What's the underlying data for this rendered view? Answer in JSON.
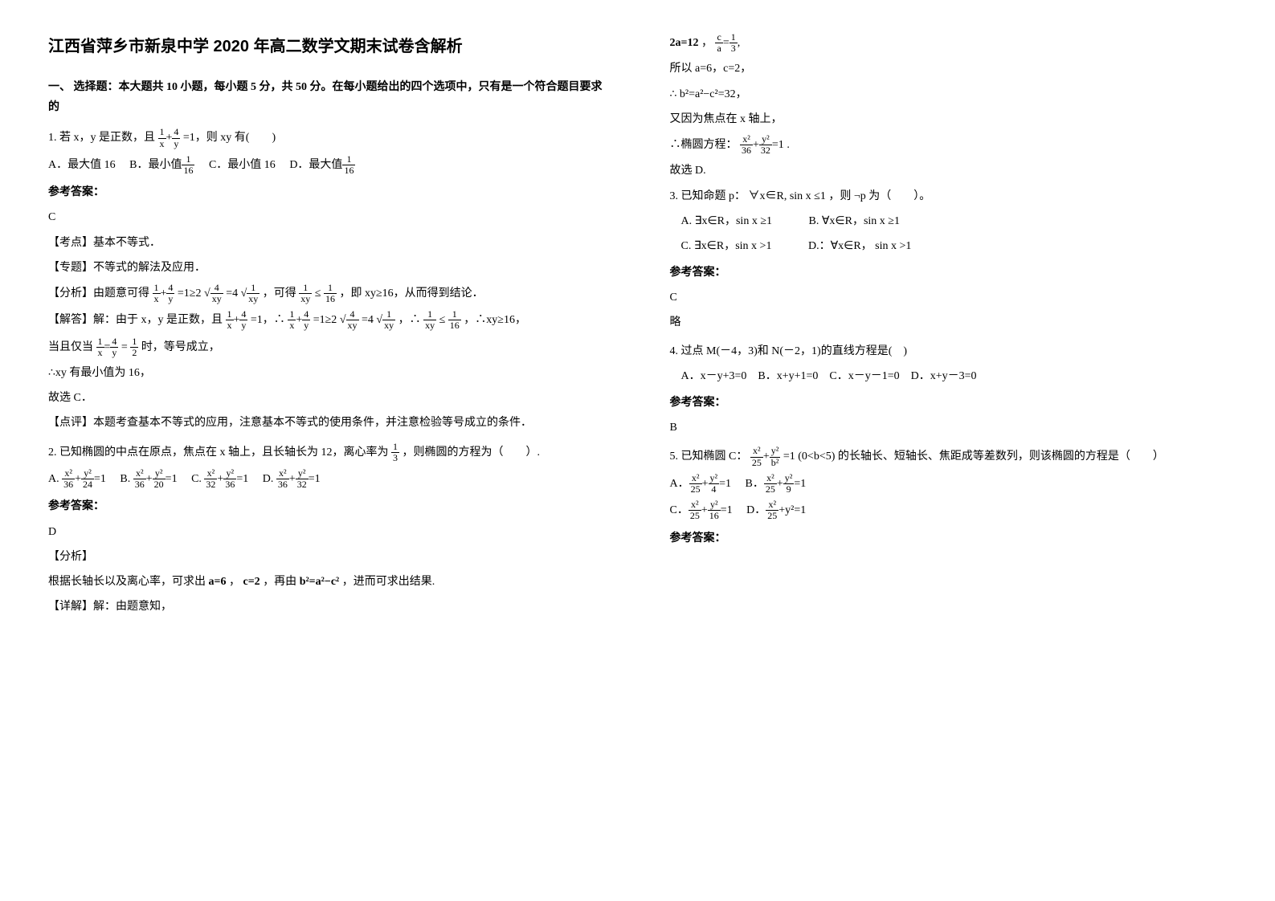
{
  "title": "江西省萍乡市新泉中学 2020 年高二数学文期末试卷含解析",
  "section1_head": "一、 选择题：本大题共 10 小题，每小题 5 分，共 50 分。在每小题给出的四个选项中，只有是一个符合题目要求的",
  "q1": {
    "stem_pre": "1. 若 x，y 是正数，且",
    "stem_post": "=1，则 xy 有(　　)",
    "optA": "A．最大值 16",
    "optB_pre": "B．最小值",
    "optC": "C．最小值 16",
    "optD_pre": "D．最大值",
    "ans_label": "参考答案：",
    "ans": "C",
    "kd": "【考点】基本不等式．",
    "zt": "【专题】不等式的解法及应用．",
    "fx_pre": "【分析】由题意可得",
    "fx_mid1": "=1≥2",
    "fx_mid2": "=4",
    "fx_mid3": "，可得",
    "fx_mid4": "≤",
    "fx_post": "，即 xy≥16，从而得到结论．",
    "jd_pre": "【解答】解：由于 x，y 是正数，且",
    "jd_m1": "=1，∴",
    "jd_m2": "=1≥2",
    "jd_m3": "=4",
    "jd_m4": "，∴",
    "jd_m5": "≤",
    "jd_post": "，∴xy≥16，",
    "jd_eq_pre": "当且仅当 ",
    "jd_eq_mid": "=",
    "jd_eq_post": " 时，等号成立，",
    "jd_c1": "∴xy 有最小值为 16，",
    "jd_c2": "故选 C．",
    "dp": "【点评】本题考查基本不等式的应用，注意基本不等式的使用条件，并注意检验等号成立的条件．"
  },
  "q2": {
    "stem_pre": "2. 已知椭圆的中点在原点，焦点在 x 轴上，且长轴长为 12，离心率为",
    "stem_post": "，则椭圆的方程为（　　）.",
    "opts_line": "A.　　B.　　C.　　D.　",
    "ans_label": "参考答案：",
    "ans": "D",
    "fx": "【分析】",
    "fx_body_pre": "根据长轴长以及离心率，可求出",
    "fx_body_m1": "a=6",
    "fx_body_m2": "，",
    "fx_body_m3": "c=2",
    "fx_body_m4": "，再由",
    "fx_body_m5": "b²=a²−c²",
    "fx_body_post": "，进而可求出结果.",
    "xj": "【详解】解：由题意知，",
    "r1_pre": "2a=12",
    "r1_m": "，",
    "r2": "所以 a=6，c=2，",
    "r3": "∴ b²=a²−c²=32，",
    "r4": "又因为焦点在 x 轴上，",
    "r5_pre": "∴椭圆方程：",
    "r5_post": ".",
    "r6": "故选 D."
  },
  "q3": {
    "stem_pre": "3. 已知命题 p：",
    "stem_mid": "∀x∈R, sin x ≤1",
    "stem_post": "，则 ¬p 为（　　）。",
    "optA": "A. ∃x∈R，sin x ≥1",
    "optB": "B. ∀x∈R，sin x ≥1",
    "optC": "C. ∃x∈R，sin x >1",
    "optD": "D.：∀x∈R， sin x >1",
    "ans_label": "参考答案：",
    "ans": "C",
    "lue": "略"
  },
  "q4": {
    "stem": "4. 过点 M(－4，3)和 N(－2，1)的直线方程是(　)",
    "opts": "A．x－y+3=0　B．x+y+1=0　C．x－y－1=0　D．x+y－3=0",
    "ans_label": "参考答案：",
    "ans": "B"
  },
  "q5": {
    "stem_pre": "5. 已知椭圆 C：",
    "stem_mid": "=1 (0<b<5)",
    "stem_post": "的长轴长、短轴长、焦距成等差数列，则该椭圆的方程是（　　）",
    "ans_label": "参考答案："
  },
  "fracs": {
    "one_x": {
      "n": "1",
      "d": "x"
    },
    "four_y": {
      "n": "4",
      "d": "y"
    },
    "one_16": {
      "n": "1",
      "d": "16"
    },
    "four_xy": {
      "n": "4",
      "d": "xy"
    },
    "one_xy": {
      "n": "1",
      "d": "xy"
    },
    "one_half": {
      "n": "1",
      "d": "2"
    },
    "one_third": {
      "n": "1",
      "d": "3"
    },
    "c_a": {
      "n": "c",
      "d": "a"
    },
    "x2_36": {
      "n": "x²",
      "d": "36"
    },
    "y2_24": {
      "n": "y²",
      "d": "24"
    },
    "y2_20": {
      "n": "y²",
      "d": "20"
    },
    "x2_32": {
      "n": "x²",
      "d": "32"
    },
    "y2_36": {
      "n": "y²",
      "d": "36"
    },
    "y2_32": {
      "n": "y²",
      "d": "32"
    },
    "x2_25": {
      "n": "x²",
      "d": "25"
    },
    "y2_b2": {
      "n": "y²",
      "d": "b²"
    },
    "y2_4": {
      "n": "y²",
      "d": "4"
    },
    "y2_9": {
      "n": "y²",
      "d": "9"
    },
    "y2_16": {
      "n": "y²",
      "d": "16"
    }
  }
}
